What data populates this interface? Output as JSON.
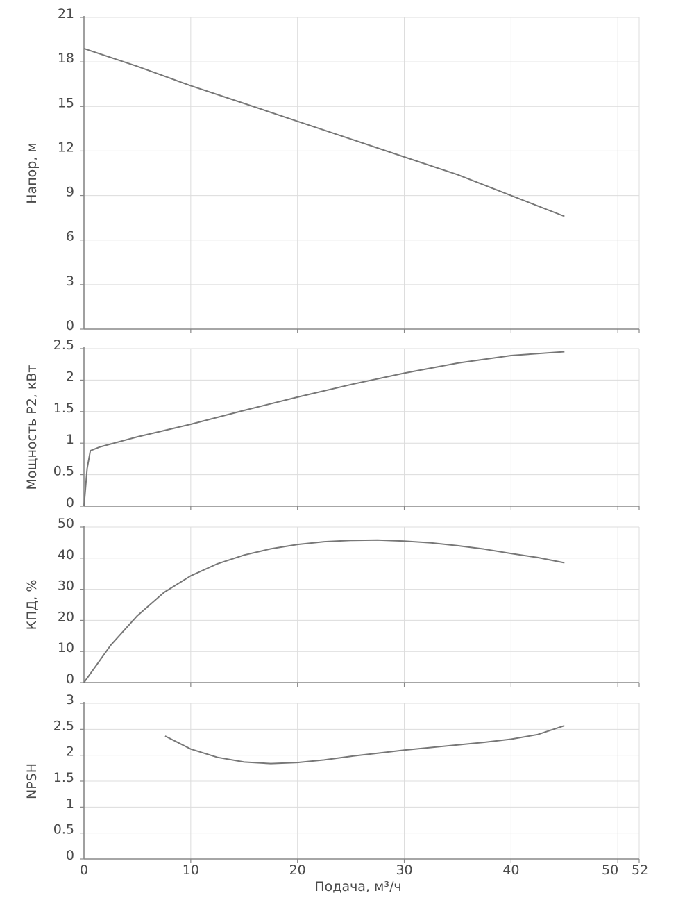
{
  "chart_data": {
    "type": "line",
    "xlabel": "Подача, м³/ч",
    "xlim": [
      0,
      52
    ],
    "xticks": [
      0,
      10,
      20,
      30,
      40,
      50,
      52
    ],
    "grid": true,
    "colors": {
      "line": "#777777",
      "grid": "#dcdcdc",
      "axis": "#888888",
      "text": "#4a4a4a"
    },
    "panels": [
      {
        "ylabel": "Напор, м",
        "ylim": [
          0,
          21
        ],
        "yticks": [
          0,
          3,
          6,
          9,
          12,
          15,
          18,
          21
        ],
        "yticklabels": [
          "0",
          "3",
          "6",
          "9",
          "12",
          "15",
          "18",
          "21"
        ],
        "series": [
          {
            "x": [
              0,
              5,
              10,
              15,
              20,
              25,
              30,
              35,
              40,
              45
            ],
            "y": [
              18.9,
              17.7,
              16.4,
              15.2,
              14.0,
              12.8,
              11.6,
              10.4,
              9.0,
              7.6
            ]
          }
        ]
      },
      {
        "ylabel": "Мощность P2, кВт",
        "ylim": [
          0,
          2.5
        ],
        "yticks": [
          0,
          0.5,
          1,
          1.5,
          2,
          2.5
        ],
        "yticklabels": [
          "0",
          "0.5",
          "1",
          "1.5",
          "2",
          "2.5"
        ],
        "series": [
          {
            "x": [
              0,
              0.3,
              0.6,
              1.5,
              5,
              10,
              15,
              20,
              25,
              30,
              35,
              40,
              45
            ],
            "y": [
              0,
              0.6,
              0.88,
              0.94,
              1.1,
              1.3,
              1.52,
              1.73,
              1.93,
              2.11,
              2.27,
              2.39,
              2.45
            ]
          }
        ]
      },
      {
        "ylabel": "КПД, %",
        "ylim": [
          0,
          50
        ],
        "yticks": [
          0,
          10,
          20,
          30,
          40,
          50
        ],
        "yticklabels": [
          "0",
          "10",
          "20",
          "30",
          "40",
          "50"
        ],
        "series": [
          {
            "x": [
              0,
              2.5,
              5,
              7.5,
              10,
              12.5,
              15,
              17.5,
              20,
              22.5,
              25,
              27.5,
              30,
              32.5,
              35,
              37.5,
              40,
              42.5,
              45
            ],
            "y": [
              0,
              12,
              21.5,
              29,
              34.3,
              38.2,
              41,
              43,
              44.4,
              45.3,
              45.7,
              45.8,
              45.5,
              44.9,
              44,
              42.9,
              41.5,
              40.2,
              38.5
            ]
          }
        ]
      },
      {
        "ylabel": "NPSH",
        "ylim": [
          0,
          3
        ],
        "yticks": [
          0,
          0.5,
          1,
          1.5,
          2,
          2.5,
          3
        ],
        "yticklabels": [
          "0",
          "0.5",
          "1",
          "1.5",
          "2",
          "2.5",
          "3"
        ],
        "series": [
          {
            "x": [
              7.6,
              10,
              12.5,
              15,
              17.5,
              20,
              22.5,
              25,
              27.5,
              30,
              32.5,
              35,
              37.5,
              40,
              42.5,
              45
            ],
            "y": [
              2.37,
              2.12,
              1.96,
              1.87,
              1.84,
              1.86,
              1.91,
              1.98,
              2.04,
              2.1,
              2.15,
              2.2,
              2.25,
              2.31,
              2.4,
              2.57
            ]
          }
        ]
      }
    ]
  }
}
